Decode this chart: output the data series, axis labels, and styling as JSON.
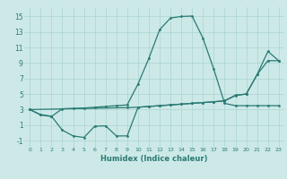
{
  "xlabel": "Humidex (Indice chaleur)",
  "bg_color": "#cce9e7",
  "grid_color": "#aad4d1",
  "line_color": "#2a7a74",
  "xlim": [
    -0.5,
    23.5
  ],
  "ylim": [
    -1.8,
    16.2
  ],
  "yticks": [
    -1,
    1,
    3,
    5,
    7,
    9,
    11,
    13,
    15
  ],
  "xticks": [
    0,
    1,
    2,
    3,
    4,
    5,
    6,
    7,
    8,
    9,
    10,
    11,
    12,
    13,
    14,
    15,
    16,
    17,
    18,
    19,
    20,
    21,
    22,
    23
  ],
  "line1_x": [
    0,
    1,
    2,
    3,
    4,
    5,
    6,
    7,
    8,
    9,
    10,
    11,
    12,
    13,
    14,
    15,
    16,
    17,
    18,
    19,
    20,
    21,
    22,
    23
  ],
  "line1_y": [
    3.0,
    2.3,
    2.1,
    3.1,
    3.15,
    3.2,
    3.3,
    3.4,
    3.5,
    3.6,
    6.3,
    9.6,
    13.3,
    14.8,
    15.0,
    15.05,
    12.2,
    8.2,
    3.8,
    3.5,
    3.5,
    3.5,
    3.5,
    3.5
  ],
  "line2_x": [
    0,
    1,
    2,
    3,
    4,
    5,
    6,
    7,
    8,
    9,
    10,
    11,
    12,
    13,
    14,
    15,
    16,
    17,
    18,
    19,
    20,
    21,
    22,
    23
  ],
  "line2_y": [
    3.0,
    2.35,
    2.15,
    0.35,
    -0.4,
    -0.6,
    0.85,
    0.9,
    -0.4,
    -0.4,
    3.3,
    3.4,
    3.5,
    3.6,
    3.7,
    3.8,
    3.9,
    4.0,
    4.1,
    4.8,
    5.0,
    7.5,
    10.5,
    9.3
  ],
  "line3_x": [
    0,
    9,
    10,
    11,
    12,
    13,
    14,
    15,
    16,
    17,
    18,
    19,
    20,
    21,
    22,
    23
  ],
  "line3_y": [
    3.0,
    3.25,
    3.3,
    3.4,
    3.5,
    3.6,
    3.7,
    3.8,
    3.9,
    4.0,
    4.15,
    4.85,
    5.0,
    7.5,
    9.3,
    9.3
  ]
}
